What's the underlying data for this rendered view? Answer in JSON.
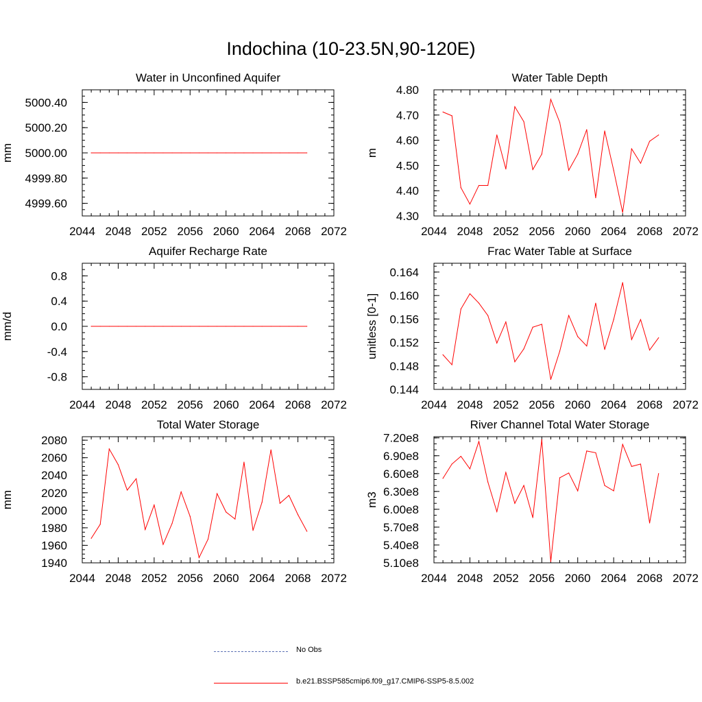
{
  "title": "Indochina (10-23.5N,90-120E)",
  "colors": {
    "model": "#ff0000",
    "obs": "#5b6fb4",
    "axis": "#000000"
  },
  "legend": [
    {
      "label": "No Obs",
      "style": "dashed",
      "color": "#5b6fb4"
    },
    {
      "label": "b.e21.BSSP585cmip6.f09_g17.CMIP6-SSP5-8.5.002",
      "style": "solid",
      "color": "#ff0000"
    }
  ],
  "chart_data": [
    {
      "type": "line",
      "title": "Water in Unconfined Aquifer",
      "ylabel": "mm",
      "xlim": [
        2044,
        2072
      ],
      "xticks": [
        "2044",
        "2048",
        "2052",
        "2056",
        "2060",
        "2064",
        "2068",
        "2072"
      ],
      "ylim": [
        4999.5,
        5000.5
      ],
      "yticks": [
        "4999.60",
        "4999.80",
        "5000.00",
        "5000.20",
        "5000.40"
      ],
      "yminor": 0.05,
      "x": [
        2045,
        2046,
        2047,
        2048,
        2049,
        2050,
        2051,
        2052,
        2053,
        2054,
        2055,
        2056,
        2057,
        2058,
        2059,
        2060,
        2061,
        2062,
        2063,
        2064,
        2065,
        2066,
        2067,
        2068,
        2069
      ],
      "series": [
        {
          "values": [
            5000,
            5000,
            5000,
            5000,
            5000,
            5000,
            5000,
            5000,
            5000,
            5000,
            5000,
            5000,
            5000,
            5000,
            5000,
            5000,
            5000,
            5000,
            5000,
            5000,
            5000,
            5000,
            5000,
            5000,
            5000
          ]
        }
      ]
    },
    {
      "type": "line",
      "title": "Water Table Depth",
      "ylabel": "m",
      "xlim": [
        2044,
        2072
      ],
      "xticks": [
        "2044",
        "2048",
        "2052",
        "2056",
        "2060",
        "2064",
        "2068",
        "2072"
      ],
      "ylim": [
        4.3,
        4.8
      ],
      "yticks": [
        "4.30",
        "4.40",
        "4.50",
        "4.60",
        "4.70",
        "4.80"
      ],
      "yminor": 0.02,
      "x": [
        2045,
        2046,
        2047,
        2048,
        2049,
        2050,
        2051,
        2052,
        2053,
        2054,
        2055,
        2056,
        2057,
        2058,
        2059,
        2060,
        2061,
        2062,
        2063,
        2064,
        2065,
        2066,
        2067,
        2068,
        2069
      ],
      "series": [
        {
          "values": [
            4.712,
            4.697,
            4.412,
            4.347,
            4.421,
            4.421,
            4.621,
            4.486,
            4.733,
            4.674,
            4.484,
            4.545,
            4.762,
            4.671,
            4.481,
            4.545,
            4.642,
            4.372,
            4.637,
            4.481,
            4.314,
            4.566,
            4.509,
            4.596,
            4.621
          ]
        }
      ]
    },
    {
      "type": "line",
      "title": "Aquifer Recharge Rate",
      "ylabel": "mm/d",
      "xlim": [
        2044,
        2072
      ],
      "xticks": [
        "2044",
        "2048",
        "2052",
        "2056",
        "2060",
        "2064",
        "2068",
        "2072"
      ],
      "ylim": [
        -1.0,
        1.0
      ],
      "yticks": [
        "-0.8",
        "-0.4",
        "0.0",
        "0.4",
        "0.8"
      ],
      "yminor": 0.1,
      "x": [
        2045,
        2046,
        2047,
        2048,
        2049,
        2050,
        2051,
        2052,
        2053,
        2054,
        2055,
        2056,
        2057,
        2058,
        2059,
        2060,
        2061,
        2062,
        2063,
        2064,
        2065,
        2066,
        2067,
        2068,
        2069
      ],
      "series": [
        {
          "values": [
            0,
            0,
            0,
            0,
            0,
            0,
            0,
            0,
            0,
            0,
            0,
            0,
            0,
            0,
            0,
            0,
            0,
            0,
            0,
            0,
            0,
            0,
            0,
            0,
            0
          ]
        }
      ]
    },
    {
      "type": "line",
      "title": "Frac Water Table at Surface",
      "ylabel": "unitless [0-1]",
      "xlim": [
        2044,
        2072
      ],
      "xticks": [
        "2044",
        "2048",
        "2052",
        "2056",
        "2060",
        "2064",
        "2068",
        "2072"
      ],
      "ylim": [
        0.144,
        0.1655
      ],
      "yticks": [
        "0.144",
        "0.148",
        "0.152",
        "0.156",
        "0.160",
        "0.164"
      ],
      "yminor": 0.001,
      "x": [
        2045,
        2046,
        2047,
        2048,
        2049,
        2050,
        2051,
        2052,
        2053,
        2054,
        2055,
        2056,
        2057,
        2058,
        2059,
        2060,
        2061,
        2062,
        2063,
        2064,
        2065,
        2066,
        2067,
        2068,
        2069
      ],
      "series": [
        {
          "values": [
            0.1499,
            0.1482,
            0.1577,
            0.1603,
            0.1587,
            0.1566,
            0.1519,
            0.1555,
            0.1487,
            0.1509,
            0.1546,
            0.1551,
            0.1457,
            0.1505,
            0.1566,
            0.153,
            0.1514,
            0.1587,
            0.1508,
            0.1559,
            0.1622,
            0.1525,
            0.1559,
            0.1507,
            0.1528
          ]
        }
      ]
    },
    {
      "type": "line",
      "title": "Total Water Storage",
      "ylabel": "mm",
      "xlim": [
        2044,
        2072
      ],
      "xticks": [
        "2044",
        "2048",
        "2052",
        "2056",
        "2060",
        "2064",
        "2068",
        "2072"
      ],
      "ylim": [
        1940,
        2084
      ],
      "yticks": [
        "1940",
        "1960",
        "1980",
        "2000",
        "2020",
        "2040",
        "2060",
        "2080"
      ],
      "yminor": 5,
      "x": [
        2045,
        2046,
        2047,
        2048,
        2049,
        2050,
        2051,
        2052,
        2053,
        2054,
        2055,
        2056,
        2057,
        2058,
        2059,
        2060,
        2061,
        2062,
        2063,
        2064,
        2065,
        2066,
        2067,
        2068,
        2069
      ],
      "series": [
        {
          "values": [
            1968,
            1984,
            2070,
            2052,
            2023,
            2036,
            1978,
            2006,
            1961,
            1985,
            2021,
            1993,
            1946,
            1967,
            2019,
            1998,
            1990,
            2055,
            1977,
            2009,
            2069,
            2008,
            2017,
            1995,
            1976
          ]
        }
      ]
    },
    {
      "type": "line",
      "title": "River Channel Total Water Storage",
      "ylabel": "m3",
      "xlim": [
        2044,
        2072
      ],
      "xticks": [
        "2044",
        "2048",
        "2052",
        "2056",
        "2060",
        "2064",
        "2068",
        "2072"
      ],
      "ylim": [
        510000000,
        722000000
      ],
      "yticks": [
        "5.10e8",
        "5.40e8",
        "5.70e8",
        "6.00e8",
        "6.30e8",
        "6.60e8",
        "6.90e8",
        "7.20e8"
      ],
      "yminor": 10000000,
      "x": [
        2045,
        2046,
        2047,
        2048,
        2049,
        2050,
        2051,
        2052,
        2053,
        2054,
        2055,
        2056,
        2057,
        2058,
        2059,
        2060,
        2061,
        2062,
        2063,
        2064,
        2065,
        2066,
        2067,
        2068,
        2069
      ],
      "series": [
        {
          "values": [
            652000000,
            676000000,
            689000000,
            668000000,
            714000000,
            646000000,
            596000000,
            662000000,
            610000000,
            640000000,
            586000000,
            717000000,
            512000000,
            653000000,
            661000000,
            631000000,
            698000000,
            695000000,
            640000000,
            631000000,
            709000000,
            672000000,
            676000000,
            577000000,
            660000000
          ]
        }
      ]
    }
  ]
}
